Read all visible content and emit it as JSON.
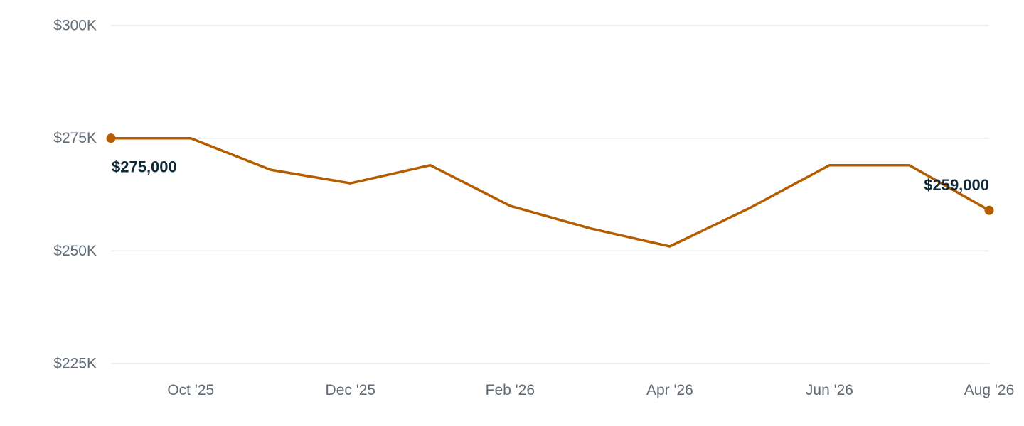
{
  "chart_data": {
    "type": "line",
    "x": [
      "2025-09",
      "2025-10",
      "2025-11",
      "2025-12",
      "2026-01",
      "2026-02",
      "2026-03",
      "2026-04",
      "2026-05",
      "2026-06",
      "2026-07",
      "2026-08"
    ],
    "series": [
      {
        "values": [
          275000,
          275000,
          268000,
          265000,
          269000,
          260000,
          255000,
          251000,
          259500,
          269000,
          269000,
          259000
        ]
      }
    ],
    "ylim": [
      225000,
      300000
    ],
    "yticks": [
      {
        "value": 300000,
        "label": "$300K"
      },
      {
        "value": 275000,
        "label": "$275K"
      },
      {
        "value": 250000,
        "label": "$250K"
      },
      {
        "value": 225000,
        "label": "$225K"
      }
    ],
    "xticks": [
      {
        "index": 1,
        "label": "Oct '25"
      },
      {
        "index": 3,
        "label": "Dec '25"
      },
      {
        "index": 5,
        "label": "Feb '26"
      },
      {
        "index": 7,
        "label": "Apr '26"
      },
      {
        "index": 9,
        "label": "Jun '26"
      },
      {
        "index": 11,
        "label": "Aug '26"
      }
    ],
    "data_labels": [
      {
        "index": 0,
        "label": "$275,000"
      },
      {
        "index": 11,
        "label": "$259,000"
      }
    ],
    "grid": true,
    "legend": "none",
    "title": "",
    "xlabel": "",
    "ylabel": "",
    "colors": {
      "line": "#b35c00",
      "grid": "#e6e8ec",
      "tick_text": "#5f6b76",
      "label_text": "#102a3a"
    }
  }
}
